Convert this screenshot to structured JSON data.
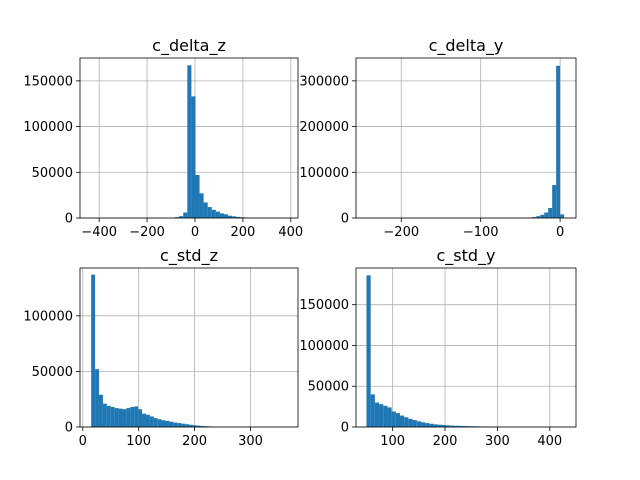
{
  "chart_data": [
    {
      "type": "bar",
      "title": "c_delta_z",
      "xlim": [
        -480,
        430
      ],
      "ylim": [
        0,
        175000
      ],
      "xticks": [
        -400,
        -200,
        0,
        200,
        400
      ],
      "yticks": [
        0,
        50000,
        100000,
        150000
      ],
      "xtick_labels": [
        "−400",
        "−200",
        "0",
        "200",
        "400"
      ],
      "ytick_labels": [
        "0",
        "50000",
        "100000",
        "150000"
      ],
      "grid": true,
      "bins": [
        {
          "x0": -100,
          "x1": -83,
          "y": 400
        },
        {
          "x0": -83,
          "x1": -66,
          "y": 1000
        },
        {
          "x0": -66,
          "x1": -49,
          "y": 2000
        },
        {
          "x0": -49,
          "x1": -32,
          "y": 6000
        },
        {
          "x0": -32,
          "x1": -15,
          "y": 167000
        },
        {
          "x0": -15,
          "x1": 2,
          "y": 133000
        },
        {
          "x0": 2,
          "x1": 19,
          "y": 47000
        },
        {
          "x0": 19,
          "x1": 36,
          "y": 27000
        },
        {
          "x0": 36,
          "x1": 53,
          "y": 17000
        },
        {
          "x0": 53,
          "x1": 70,
          "y": 12000
        },
        {
          "x0": 70,
          "x1": 87,
          "y": 9000
        },
        {
          "x0": 87,
          "x1": 104,
          "y": 7000
        },
        {
          "x0": 104,
          "x1": 121,
          "y": 5000
        },
        {
          "x0": 121,
          "x1": 138,
          "y": 4000
        },
        {
          "x0": 138,
          "x1": 155,
          "y": 2500
        },
        {
          "x0": 155,
          "x1": 172,
          "y": 1800
        },
        {
          "x0": 172,
          "x1": 189,
          "y": 1200
        },
        {
          "x0": 189,
          "x1": 206,
          "y": 800
        },
        {
          "x0": 206,
          "x1": 223,
          "y": 500
        }
      ]
    },
    {
      "type": "bar",
      "title": "c_delta_y",
      "xlim": [
        -257,
        20
      ],
      "ylim": [
        0,
        350000
      ],
      "xticks": [
        -200,
        -100,
        0
      ],
      "yticks": [
        0,
        100000,
        200000,
        300000
      ],
      "xtick_labels": [
        "−200",
        "−100",
        "0"
      ],
      "ytick_labels": [
        "0",
        "100000",
        "200000",
        "300000"
      ],
      "grid": true,
      "bins": [
        {
          "x0": -40,
          "x1": -35,
          "y": 1000
        },
        {
          "x0": -35,
          "x1": -30,
          "y": 2000
        },
        {
          "x0": -30,
          "x1": -25,
          "y": 4000
        },
        {
          "x0": -25,
          "x1": -20,
          "y": 7000
        },
        {
          "x0": -20,
          "x1": -15,
          "y": 12000
        },
        {
          "x0": -15,
          "x1": -10,
          "y": 22000
        },
        {
          "x0": -10,
          "x1": -5,
          "y": 72000
        },
        {
          "x0": -5,
          "x1": 0,
          "y": 333000
        },
        {
          "x0": 0,
          "x1": 5,
          "y": 8000
        }
      ]
    },
    {
      "type": "bar",
      "title": "c_std_z",
      "xlim": [
        -5,
        385
      ],
      "ylim": [
        0,
        143000
      ],
      "xticks": [
        0,
        100,
        200,
        300
      ],
      "yticks": [
        0,
        50000,
        100000
      ],
      "xtick_labels": [
        "0",
        "100",
        "200",
        "300"
      ],
      "ytick_labels": [
        "0",
        "50000",
        "100000"
      ],
      "grid": true,
      "bins": [
        {
          "x0": 15,
          "x1": 22,
          "y": 137000
        },
        {
          "x0": 22,
          "x1": 29,
          "y": 52000
        },
        {
          "x0": 29,
          "x1": 36,
          "y": 29000
        },
        {
          "x0": 36,
          "x1": 43,
          "y": 21000
        },
        {
          "x0": 43,
          "x1": 50,
          "y": 19000
        },
        {
          "x0": 50,
          "x1": 57,
          "y": 18000
        },
        {
          "x0": 57,
          "x1": 64,
          "y": 17000
        },
        {
          "x0": 64,
          "x1": 71,
          "y": 16500
        },
        {
          "x0": 71,
          "x1": 78,
          "y": 16000
        },
        {
          "x0": 78,
          "x1": 85,
          "y": 17000
        },
        {
          "x0": 85,
          "x1": 92,
          "y": 18000
        },
        {
          "x0": 92,
          "x1": 99,
          "y": 18500
        },
        {
          "x0": 99,
          "x1": 106,
          "y": 16000
        },
        {
          "x0": 106,
          "x1": 113,
          "y": 12000
        },
        {
          "x0": 113,
          "x1": 120,
          "y": 11000
        },
        {
          "x0": 120,
          "x1": 127,
          "y": 9500
        },
        {
          "x0": 127,
          "x1": 134,
          "y": 8000
        },
        {
          "x0": 134,
          "x1": 141,
          "y": 7000
        },
        {
          "x0": 141,
          "x1": 148,
          "y": 6000
        },
        {
          "x0": 148,
          "x1": 155,
          "y": 5500
        },
        {
          "x0": 155,
          "x1": 162,
          "y": 4800
        },
        {
          "x0": 162,
          "x1": 169,
          "y": 4000
        },
        {
          "x0": 169,
          "x1": 176,
          "y": 3500
        },
        {
          "x0": 176,
          "x1": 183,
          "y": 3000
        },
        {
          "x0": 183,
          "x1": 190,
          "y": 2500
        },
        {
          "x0": 190,
          "x1": 197,
          "y": 2000
        },
        {
          "x0": 197,
          "x1": 204,
          "y": 1600
        },
        {
          "x0": 204,
          "x1": 211,
          "y": 1200
        },
        {
          "x0": 211,
          "x1": 218,
          "y": 900
        },
        {
          "x0": 218,
          "x1": 225,
          "y": 700
        },
        {
          "x0": 225,
          "x1": 232,
          "y": 500
        }
      ]
    },
    {
      "type": "bar",
      "title": "c_std_y",
      "xlim": [
        30,
        450
      ],
      "ylim": [
        0,
        195000
      ],
      "xticks": [
        100,
        200,
        300,
        400
      ],
      "yticks": [
        0,
        50000,
        100000,
        150000
      ],
      "xtick_labels": [
        "100",
        "200",
        "300",
        "400"
      ],
      "ytick_labels": [
        "0",
        "50000",
        "100000",
        "150000"
      ],
      "grid": true,
      "bins": [
        {
          "x0": 50,
          "x1": 58,
          "y": 186000
        },
        {
          "x0": 58,
          "x1": 66,
          "y": 40000
        },
        {
          "x0": 66,
          "x1": 74,
          "y": 30000
        },
        {
          "x0": 74,
          "x1": 82,
          "y": 28000
        },
        {
          "x0": 82,
          "x1": 90,
          "y": 26000
        },
        {
          "x0": 90,
          "x1": 98,
          "y": 24000
        },
        {
          "x0": 98,
          "x1": 106,
          "y": 19000
        },
        {
          "x0": 106,
          "x1": 114,
          "y": 17000
        },
        {
          "x0": 114,
          "x1": 122,
          "y": 14000
        },
        {
          "x0": 122,
          "x1": 130,
          "y": 12000
        },
        {
          "x0": 130,
          "x1": 138,
          "y": 10000
        },
        {
          "x0": 138,
          "x1": 146,
          "y": 8500
        },
        {
          "x0": 146,
          "x1": 154,
          "y": 7000
        },
        {
          "x0": 154,
          "x1": 162,
          "y": 5800
        },
        {
          "x0": 162,
          "x1": 170,
          "y": 4800
        },
        {
          "x0": 170,
          "x1": 178,
          "y": 4000
        },
        {
          "x0": 178,
          "x1": 186,
          "y": 3300
        },
        {
          "x0": 186,
          "x1": 194,
          "y": 2800
        },
        {
          "x0": 194,
          "x1": 202,
          "y": 2400
        },
        {
          "x0": 202,
          "x1": 210,
          "y": 2000
        },
        {
          "x0": 210,
          "x1": 218,
          "y": 1700
        },
        {
          "x0": 218,
          "x1": 226,
          "y": 1500
        },
        {
          "x0": 226,
          "x1": 234,
          "y": 1300
        },
        {
          "x0": 234,
          "x1": 242,
          "y": 1100
        },
        {
          "x0": 242,
          "x1": 250,
          "y": 1000
        },
        {
          "x0": 250,
          "x1": 258,
          "y": 900
        },
        {
          "x0": 258,
          "x1": 266,
          "y": 800
        },
        {
          "x0": 266,
          "x1": 274,
          "y": 700
        },
        {
          "x0": 274,
          "x1": 282,
          "y": 600
        },
        {
          "x0": 282,
          "x1": 290,
          "y": 550
        },
        {
          "x0": 290,
          "x1": 298,
          "y": 500
        }
      ]
    }
  ],
  "colors": {
    "bar": "#1f77b4",
    "grid": "#b0b0b0",
    "axis": "#000000",
    "background": "#ffffff"
  }
}
